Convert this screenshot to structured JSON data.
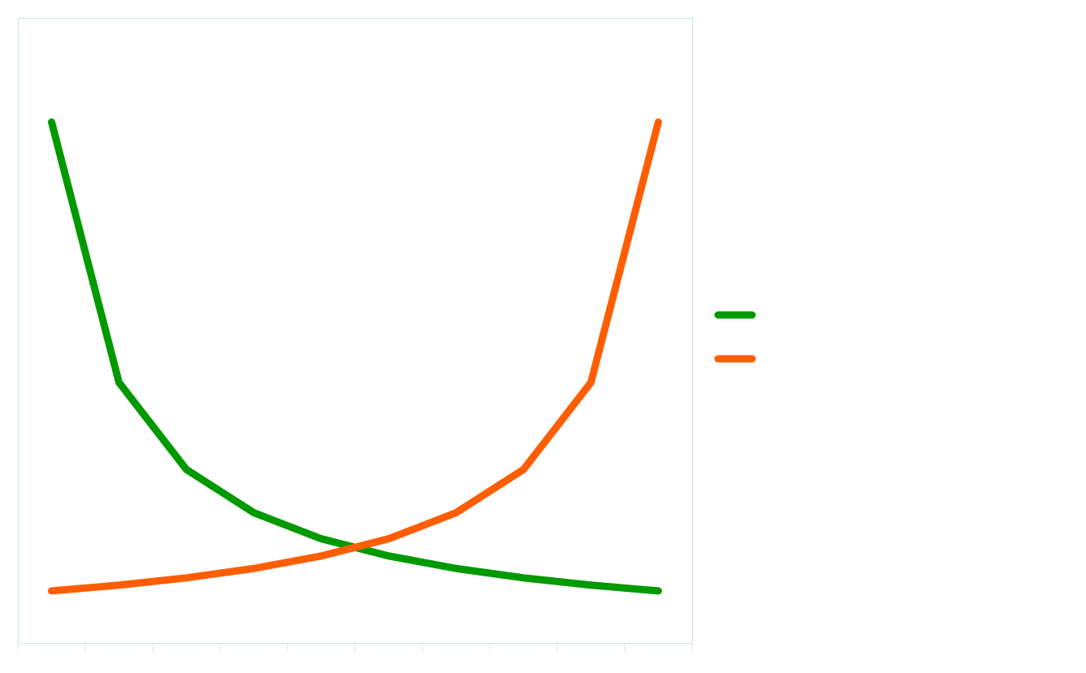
{
  "chart_data": {
    "type": "line",
    "title": "",
    "xlabel": "",
    "ylabel": "",
    "x": [
      1,
      2,
      3,
      4,
      5,
      6,
      7,
      8,
      9,
      10
    ],
    "xlim": [
      0.5,
      10.5
    ],
    "ylim": [
      0,
      1.2
    ],
    "grid": false,
    "legend": "right",
    "series": [
      {
        "color": "#009900",
        "values": [
          1.0,
          0.5,
          0.333,
          0.25,
          0.2,
          0.167,
          0.143,
          0.125,
          0.111,
          0.1
        ]
      },
      {
        "color": "#ff5e00",
        "values": [
          0.1,
          0.111,
          0.125,
          0.143,
          0.167,
          0.2,
          0.25,
          0.333,
          0.5,
          1.0
        ]
      }
    ]
  },
  "colors": {
    "frame": "#cce6f0",
    "tick": "#e6e6e6",
    "background": "#ffffff"
  }
}
